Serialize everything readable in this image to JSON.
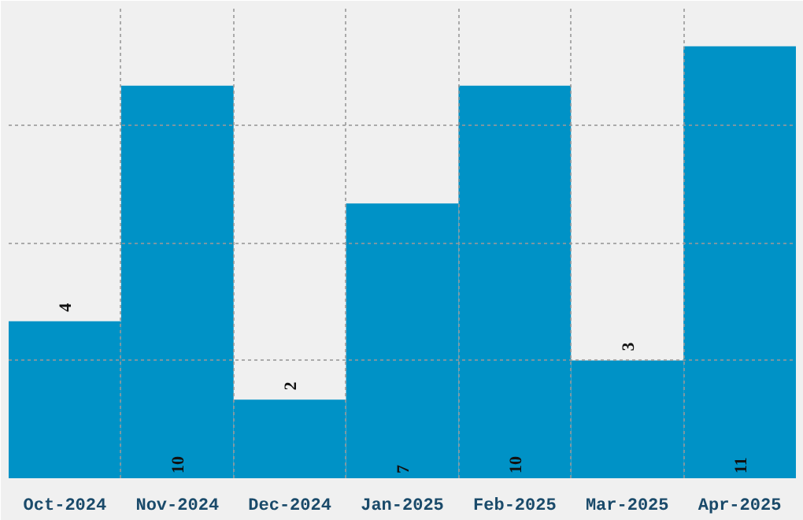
{
  "chart_data": {
    "type": "bar",
    "categories": [
      "Oct-2024",
      "Nov-2024",
      "Dec-2024",
      "Jan-2025",
      "Feb-2025",
      "Mar-2025",
      "Apr-2025"
    ],
    "values": [
      4,
      10,
      2,
      7,
      10,
      3,
      11
    ],
    "color": "#0092c6",
    "ylim": [
      0,
      12
    ],
    "yticks": [
      {
        "value": 3,
        "label": null
      },
      {
        "value": 6,
        "label": null
      },
      {
        "value": 9,
        "label": null
      },
      {
        "value": 12,
        "label": null
      }
    ],
    "grid": true,
    "data_labels": true,
    "tick_labels": "x"
  }
}
